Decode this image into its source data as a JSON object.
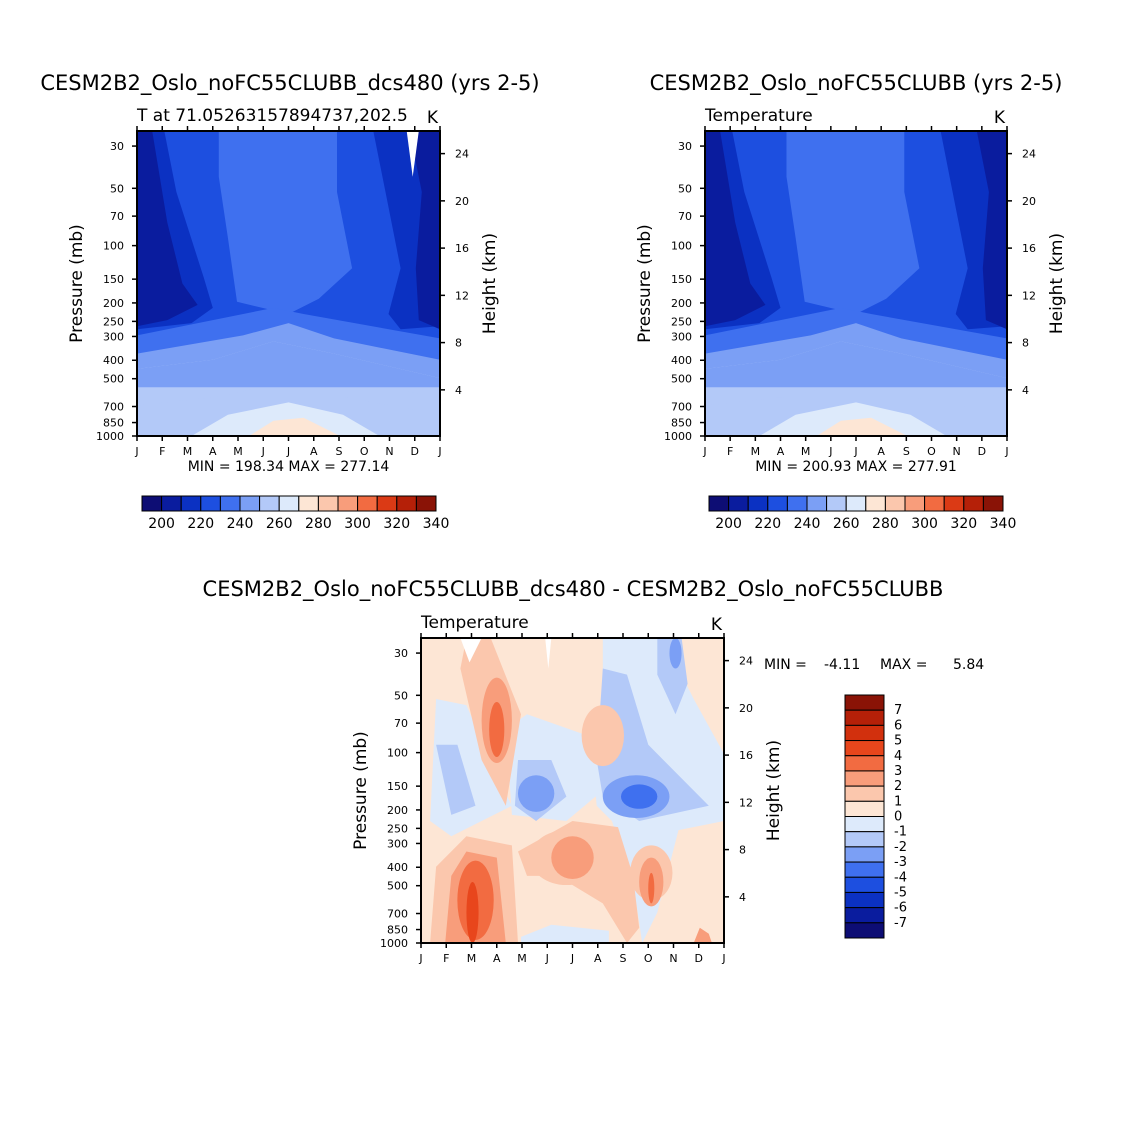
{
  "colors": {
    "abs_levels": [
      "#0d0d74",
      "#0a1c9e",
      "#0b31c2",
      "#1d4fe0",
      "#3f70ef",
      "#7b9ff5",
      "#b3c9f8",
      "#ddeafb",
      "#fde6d5",
      "#fbc7ad",
      "#f89d7b",
      "#f26b41",
      "#db3a15",
      "#b52008",
      "#8a1306"
    ],
    "diff_levels": [
      "#0d0d74",
      "#0a1c9e",
      "#0b31c2",
      "#1d4fe0",
      "#3f70ef",
      "#7b9ff5",
      "#b3c9f8",
      "#ddeafb",
      "#fde6d5",
      "#fbc7ad",
      "#f89d7b",
      "#f26b41",
      "#e8461c",
      "#d2300d",
      "#b52008",
      "#8a1306"
    ]
  },
  "chart_data": [
    {
      "id": "panel1",
      "type": "contour",
      "title": "CESM2B2_Oslo_noFC55CLUBB_dcs480 (yrs 2-5)",
      "subtitle_left": "T at 71.05263157894737,202.5",
      "subtitle_right": "K",
      "ylabel": "Pressure (mb)",
      "ylabel_right": "Height (km)",
      "xticks": [
        "J",
        "F",
        "M",
        "A",
        "M",
        "J",
        "J",
        "A",
        "S",
        "O",
        "N",
        "D",
        "J"
      ],
      "pressure_ticks": [
        30,
        50,
        70,
        100,
        150,
        200,
        250,
        300,
        400,
        500,
        700,
        850,
        1000
      ],
      "height_ticks": [
        24,
        20,
        16,
        12,
        8,
        4
      ],
      "ylim_mb": [
        25,
        1000
      ],
      "stats": "MIN = 198.34 MAX = 277.14",
      "colorbar_labels": [
        "200",
        "220",
        "240",
        "260",
        "280",
        "300",
        "320",
        "340"
      ]
    },
    {
      "id": "panel2",
      "type": "contour",
      "title": "CESM2B2_Oslo_noFC55CLUBB (yrs 2-5)",
      "subtitle_left": "Temperature",
      "subtitle_right": "K",
      "ylabel": "Pressure (mb)",
      "ylabel_right": "Height (km)",
      "xticks": [
        "J",
        "F",
        "M",
        "A",
        "M",
        "J",
        "J",
        "A",
        "S",
        "O",
        "N",
        "D",
        "J"
      ],
      "pressure_ticks": [
        30,
        50,
        70,
        100,
        150,
        200,
        250,
        300,
        400,
        500,
        700,
        850,
        1000
      ],
      "height_ticks": [
        24,
        20,
        16,
        12,
        8,
        4
      ],
      "ylim_mb": [
        25,
        1000
      ],
      "stats": "MIN = 200.93 MAX = 277.91",
      "colorbar_labels": [
        "200",
        "220",
        "240",
        "260",
        "280",
        "300",
        "320",
        "340"
      ]
    },
    {
      "id": "panel3",
      "type": "contour",
      "title": "CESM2B2_Oslo_noFC55CLUBB_dcs480 - CESM2B2_Oslo_noFC55CLUBB",
      "subtitle_left": "Temperature",
      "subtitle_right": "K",
      "ylabel": "Pressure (mb)",
      "ylabel_right": "Height (km)",
      "xticks": [
        "J",
        "F",
        "M",
        "A",
        "M",
        "J",
        "J",
        "A",
        "S",
        "O",
        "N",
        "D",
        "J"
      ],
      "pressure_ticks": [
        30,
        50,
        70,
        100,
        150,
        200,
        250,
        300,
        400,
        500,
        700,
        850,
        1000
      ],
      "height_ticks": [
        24,
        20,
        16,
        12,
        8,
        4
      ],
      "ylim_mb": [
        25,
        1000
      ],
      "stats_min": "MIN =",
      "stats_min_value": "-4.11",
      "stats_max": "MAX =",
      "stats_max_value": "5.84",
      "colorbar_labels": [
        "7",
        "6",
        "5",
        "4",
        "3",
        "2",
        "1",
        "0",
        "-1",
        "-2",
        "-3",
        "-4",
        "-5",
        "-6",
        "-7"
      ]
    }
  ]
}
